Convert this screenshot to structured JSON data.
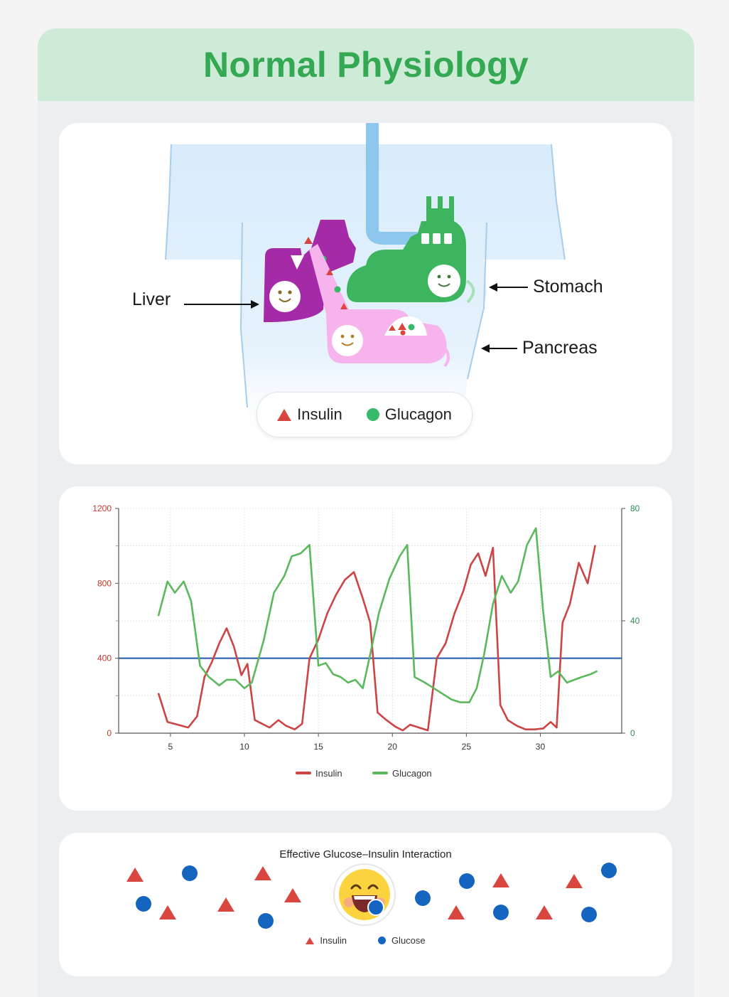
{
  "header": {
    "title": "Normal Physiology"
  },
  "anatomy": {
    "labels": {
      "liver": "Liver",
      "stomach": "Stomach",
      "pancreas": "Pancreas"
    },
    "legend": {
      "insulin": "Insulin",
      "glucagon": "Glucagon"
    },
    "colors": {
      "liver": "#a52aa8",
      "stomach": "#3cb55e",
      "pancreas": "#f6b3ec",
      "insulin": "#d9453f",
      "glucagon": "#37b96a"
    }
  },
  "chart_data": {
    "type": "line",
    "title": "",
    "xlabel": "",
    "ylabel": "",
    "xlim": [
      1.5,
      35.5
    ],
    "ylim_left": [
      0,
      1200
    ],
    "ylim_right": [
      0,
      80
    ],
    "xticks": [
      5,
      10,
      15,
      20,
      25,
      30
    ],
    "yticks_left": [
      0,
      400,
      800,
      1200
    ],
    "yticks_right": [
      0,
      40,
      80
    ],
    "reference_line": {
      "axis": "left",
      "value": 400,
      "color": "#1f5aa6"
    },
    "grid": true,
    "legend_position": "bottom",
    "series": [
      {
        "name": "Insulin",
        "axis": "left",
        "color": "#cc4444",
        "x": [
          4.2,
          4.8,
          5.5,
          6.2,
          6.8,
          7.3,
          7.8,
          8.3,
          8.8,
          9.3,
          9.8,
          10.2,
          10.7,
          11.2,
          11.7,
          12.3,
          12.8,
          13.4,
          13.9,
          14.4,
          15,
          15.6,
          16.2,
          16.8,
          17.4,
          18,
          18.5,
          19,
          19.6,
          20.2,
          20.7,
          21.2,
          21.8,
          22.4,
          23,
          23.6,
          24.2,
          24.8,
          25.3,
          25.8,
          26.3,
          26.8,
          27.3,
          27.8,
          28.4,
          29,
          29.6,
          30.2,
          30.7,
          31.1,
          31.5,
          32,
          32.6,
          33.2,
          33.7
        ],
        "y": [
          210,
          60,
          45,
          30,
          90,
          300,
          380,
          480,
          560,
          460,
          310,
          370,
          70,
          50,
          30,
          70,
          40,
          20,
          50,
          400,
          500,
          640,
          740,
          820,
          860,
          720,
          590,
          110,
          70,
          35,
          15,
          45,
          30,
          15,
          400,
          480,
          640,
          760,
          900,
          960,
          840,
          990,
          150,
          70,
          40,
          20,
          20,
          25,
          60,
          30,
          590,
          690,
          910,
          800,
          1000
        ]
      },
      {
        "name": "Glucagon",
        "axis": "right",
        "color": "#5cb85c",
        "x": [
          4.2,
          4.8,
          5.3,
          5.9,
          6.4,
          7,
          7.6,
          8.3,
          8.8,
          9.4,
          10,
          10.5,
          11.3,
          12,
          12.7,
          13.2,
          13.8,
          14.4,
          15,
          15.5,
          16,
          16.5,
          17,
          17.5,
          18,
          18.5,
          19.1,
          19.8,
          20.5,
          21,
          21.5,
          22.2,
          22.8,
          23.4,
          24,
          24.6,
          25.2,
          25.7,
          26.2,
          26.8,
          27.4,
          28,
          28.5,
          29.1,
          29.7,
          30.2,
          30.7,
          31.2,
          31.8,
          32.3,
          32.8,
          33.4,
          33.8
        ],
        "y": [
          42,
          54,
          50,
          54,
          47,
          24,
          20,
          17,
          19,
          19,
          16,
          18,
          33,
          50,
          56,
          63,
          64,
          67,
          24,
          25,
          21,
          20,
          18,
          19,
          16,
          28,
          43,
          55,
          63,
          67,
          20,
          18,
          16,
          14,
          12,
          11,
          11,
          16,
          28,
          46,
          56,
          50,
          54,
          67,
          73,
          43,
          20,
          22,
          18,
          19,
          20,
          21,
          22
        ]
      }
    ]
  },
  "interaction": {
    "title": "Effective Glucose–Insulin Interaction",
    "legend": {
      "insulin": "Insulin",
      "glucose": "Glucose"
    },
    "colors": {
      "insulin": "#d9453f",
      "glucose": "#1565c0"
    },
    "center_icon": "laughing-face-icon"
  }
}
